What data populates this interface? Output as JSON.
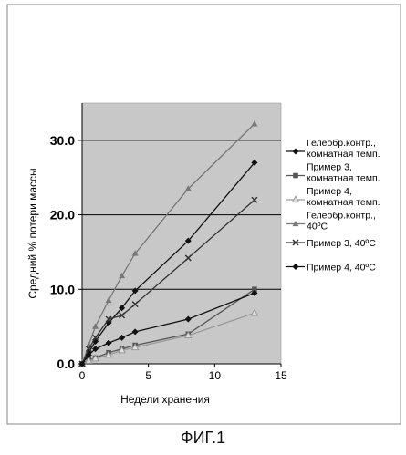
{
  "figure": {
    "caption": "ФИГ.1"
  },
  "chart_data": {
    "type": "line",
    "xlabel": "Недели хранения",
    "ylabel": "Средний % потери массы",
    "xlim": [
      0,
      15
    ],
    "ylim": [
      0,
      35
    ],
    "x_ticks": [
      0,
      5,
      10,
      15
    ],
    "x_tick_labels": [
      "0",
      "5",
      "10",
      "15"
    ],
    "y_ticks": [
      0,
      10,
      20,
      30
    ],
    "y_tick_labels": [
      "0.0",
      "10.0",
      "20.0",
      "30.0"
    ],
    "grid": "horizontal major lines",
    "legend_position": "right",
    "series": [
      {
        "name": "Гелеобр.контр., комнатная темп.",
        "legend_lines": [
          "Гелеобр.контр.,",
          "комнатная темп."
        ],
        "color": "#111111",
        "marker": "diamond",
        "x": [
          0,
          0.5,
          1,
          2,
          3,
          4,
          8,
          13
        ],
        "y": [
          0,
          1.5,
          3.0,
          5.5,
          7.5,
          9.8,
          16.5,
          27.0
        ]
      },
      {
        "name": "Пример 3, комнатная темп.",
        "legend_lines": [
          "Пример 3,",
          "комнатная темп."
        ],
        "color": "#555555",
        "marker": "square",
        "x": [
          0,
          0.5,
          1,
          2,
          3,
          4,
          8,
          13
        ],
        "y": [
          0,
          0.5,
          0.8,
          1.5,
          2.0,
          2.5,
          4.0,
          10.0
        ]
      },
      {
        "name": "Пример 4, комнатная темп.",
        "legend_lines": [
          "Пример 4,",
          "комнатная темп."
        ],
        "color": "#999999",
        "marker": "triangle-open",
        "x": [
          0,
          0.5,
          1,
          2,
          3,
          4,
          8,
          13
        ],
        "y": [
          0,
          0.4,
          0.7,
          1.2,
          1.8,
          2.2,
          3.8,
          6.8
        ]
      },
      {
        "name": "Гелеобр.контр., 40ºC",
        "legend_lines": [
          "Гелеобр.контр.,",
          "40ºC"
        ],
        "color": "#777777",
        "marker": "triangle",
        "x": [
          0,
          0.5,
          1,
          2,
          3,
          4,
          8,
          13
        ],
        "y": [
          0,
          2.5,
          5.0,
          8.5,
          11.8,
          14.8,
          23.5,
          32.2
        ]
      },
      {
        "name": "Пример 3, 40ºC",
        "legend_lines": [
          "Пример 3, 40ºC"
        ],
        "color": "#333333",
        "marker": "x",
        "x": [
          0,
          0.5,
          1,
          2,
          3,
          4,
          8,
          13
        ],
        "y": [
          0,
          2.0,
          3.5,
          6.0,
          6.5,
          8.0,
          14.2,
          22.0
        ]
      },
      {
        "name": "Пример 4, 40ºC",
        "legend_lines": [
          "Пример 4, 40ºC"
        ],
        "color": "#111111",
        "marker": "diamond",
        "x": [
          0,
          0.5,
          1,
          2,
          3,
          4,
          8,
          13
        ],
        "y": [
          0,
          1.2,
          2.0,
          2.8,
          3.5,
          4.3,
          6.0,
          9.5
        ]
      }
    ]
  }
}
